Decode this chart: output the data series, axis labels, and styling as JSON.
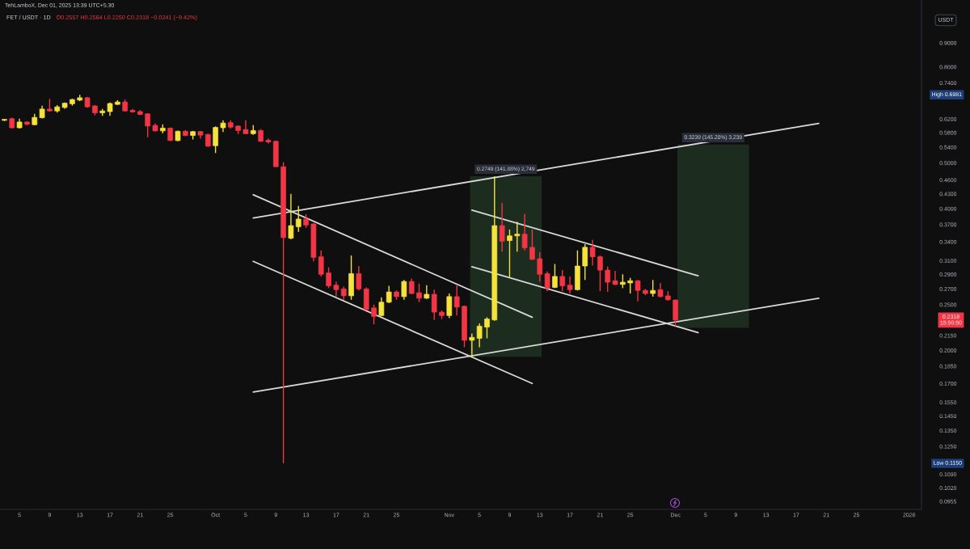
{
  "chart_data": {
    "type": "candlestick",
    "title": "FET / USDT · 1D",
    "subtitle": "O0.2557 H0.2564 L0.2250 C0.2318 −0.0241 (−9.42%)",
    "ylabel": "USDT",
    "log": true,
    "grid": false,
    "xlim": [
      "2025-09-02T10:00",
      "2026-01-02T15:00"
    ],
    "ylim": [
      0.0918,
      1.11
    ],
    "xticks": [
      {
        "value": "2025-09-05",
        "label": "5"
      },
      {
        "value": "2025-09-09",
        "label": "9"
      },
      {
        "value": "2025-09-13",
        "label": "13"
      },
      {
        "value": "2025-09-17",
        "label": "17"
      },
      {
        "value": "2025-09-21",
        "label": "21"
      },
      {
        "value": "2025-09-25",
        "label": "25"
      },
      {
        "value": "2025-10-01",
        "label": "Oct"
      },
      {
        "value": "2025-10-05",
        "label": "5"
      },
      {
        "value": "2025-10-09",
        "label": "9"
      },
      {
        "value": "2025-10-13",
        "label": "13"
      },
      {
        "value": "2025-10-17",
        "label": "17"
      },
      {
        "value": "2025-10-21",
        "label": "21"
      },
      {
        "value": "2025-10-25",
        "label": "25"
      },
      {
        "value": "2025-11-01",
        "label": "Nov"
      },
      {
        "value": "2025-11-05",
        "label": "5"
      },
      {
        "value": "2025-11-09",
        "label": "9"
      },
      {
        "value": "2025-11-13",
        "label": "13"
      },
      {
        "value": "2025-11-17",
        "label": "17"
      },
      {
        "value": "2025-11-21",
        "label": "21"
      },
      {
        "value": "2025-11-25",
        "label": "25"
      },
      {
        "value": "2025-12-01",
        "label": "Dec"
      },
      {
        "value": "2025-12-05",
        "label": "5"
      },
      {
        "value": "2025-12-09",
        "label": "9"
      },
      {
        "value": "2025-12-13",
        "label": "13"
      },
      {
        "value": "2025-12-17",
        "label": "17"
      },
      {
        "value": "2025-12-21",
        "label": "21"
      },
      {
        "value": "2025-12-25",
        "label": "25"
      },
      {
        "value": "2026-01-01",
        "label": "2026"
      }
    ],
    "yticks": [
      {
        "value": 0.9,
        "label": "0.9000"
      },
      {
        "value": 0.8,
        "label": "0.8000"
      },
      {
        "value": 0.74,
        "label": "0.7400"
      },
      {
        "value": 0.62,
        "label": "0.6200"
      },
      {
        "value": 0.58,
        "label": "0.5800"
      },
      {
        "value": 0.54,
        "label": "0.5400"
      },
      {
        "value": 0.5,
        "label": "0.5000"
      },
      {
        "value": 0.46,
        "label": "0.4600"
      },
      {
        "value": 0.43,
        "label": "0.4300"
      },
      {
        "value": 0.4,
        "label": "0.4000"
      },
      {
        "value": 0.37,
        "label": "0.3700"
      },
      {
        "value": 0.34,
        "label": "0.3400"
      },
      {
        "value": 0.31,
        "label": "0.3100"
      },
      {
        "value": 0.29,
        "label": "0.2900"
      },
      {
        "value": 0.27,
        "label": "0.2700"
      },
      {
        "value": 0.25,
        "label": "0.2500"
      },
      {
        "value": 0.215,
        "label": "0.2150"
      },
      {
        "value": 0.2,
        "label": "0.2000"
      },
      {
        "value": 0.185,
        "label": "0.1850"
      },
      {
        "value": 0.17,
        "label": "0.1700"
      },
      {
        "value": 0.155,
        "label": "0.1550"
      },
      {
        "value": 0.145,
        "label": "0.1450"
      },
      {
        "value": 0.135,
        "label": "0.1350"
      },
      {
        "value": 0.125,
        "label": "0.1250"
      },
      {
        "value": 0.109,
        "label": "0.1090"
      },
      {
        "value": 0.102,
        "label": "0.1020"
      },
      {
        "value": 0.0955,
        "label": "0.0955"
      }
    ],
    "annotations": [
      "TehLamboX, Dec 01, 2025 13:39 UTC+5:30",
      "High 0.6981",
      "Low 0.1150",
      "0.2318\n15:50:50"
    ],
    "series": [
      {
        "type": "bar",
        "x": [
          "2025-11-08T12:00"
        ],
        "values": [
          0.2749
        ],
        "base": [
          0.1937
        ],
        "value_labels": [
          "0.2749 (141.88%) 2,749"
        ],
        "color": "#1c2d1f"
      },
      {
        "type": "bar",
        "x": [
          "2025-12-06"
        ],
        "values": [
          0.3239
        ],
        "base": [
          0.2231
        ],
        "value_labels": [
          "0.3239 (145.20%) 3,239"
        ],
        "color": "#1c2d1f"
      },
      {
        "type": "line",
        "x": [
          "2025-10-06",
          "2025-12-20"
        ],
        "values": [
          0.382,
          0.607
        ],
        "color": "#d9d9d9"
      },
      {
        "type": "line",
        "x": [
          "2025-10-06",
          "2025-12-20"
        ],
        "values": [
          0.163,
          0.258
        ],
        "color": "#d9d9d9"
      },
      {
        "type": "line",
        "x": [
          "2025-10-06",
          "2025-11-12"
        ],
        "values": [
          0.428,
          0.235
        ],
        "color": "#d9d9d9"
      },
      {
        "type": "line",
        "x": [
          "2025-10-06",
          "2025-11-12"
        ],
        "values": [
          0.309,
          0.17
        ],
        "color": "#d9d9d9"
      },
      {
        "type": "line",
        "x": [
          "2025-11-04",
          "2025-12-04"
        ],
        "values": [
          0.397,
          0.288
        ],
        "color": "#d9d9d9"
      },
      {
        "type": "line",
        "x": [
          "2025-11-04",
          "2025-12-04"
        ],
        "values": [
          0.301,
          0.218
        ],
        "color": "#d9d9d9"
      },
      {
        "x": [
          "2025-09-03",
          "2025-09-04",
          "2025-09-05",
          "2025-09-06",
          "2025-09-07",
          "2025-09-08",
          "2025-09-09",
          "2025-09-10",
          "2025-09-11",
          "2025-09-12",
          "2025-09-13",
          "2025-09-14",
          "2025-09-15",
          "2025-09-16",
          "2025-09-17",
          "2025-09-18",
          "2025-09-19",
          "2025-09-20",
          "2025-09-21",
          "2025-09-22",
          "2025-09-23",
          "2025-09-24",
          "2025-09-25",
          "2025-09-26",
          "2025-09-27",
          "2025-09-28",
          "2025-09-29",
          "2025-09-30",
          "2025-10-01",
          "2025-10-02",
          "2025-10-03",
          "2025-10-04",
          "2025-10-05",
          "2025-10-06",
          "2025-10-07",
          "2025-10-08",
          "2025-10-09",
          "2025-10-10",
          "2025-10-11",
          "2025-10-12",
          "2025-10-13",
          "2025-10-14",
          "2025-10-15",
          "2025-10-16",
          "2025-10-17",
          "2025-10-18",
          "2025-10-19",
          "2025-10-20",
          "2025-10-21",
          "2025-10-22",
          "2025-10-23",
          "2025-10-24",
          "2025-10-25",
          "2025-10-26",
          "2025-10-27",
          "2025-10-28",
          "2025-10-29",
          "2025-10-30",
          "2025-10-31",
          "2025-11-01",
          "2025-11-02",
          "2025-11-03",
          "2025-11-04",
          "2025-11-05",
          "2025-11-06",
          "2025-11-07",
          "2025-11-08",
          "2025-11-09",
          "2025-11-10",
          "2025-11-11",
          "2025-11-12",
          "2025-11-13",
          "2025-11-14",
          "2025-11-15",
          "2025-11-16",
          "2025-11-17",
          "2025-11-18",
          "2025-11-19",
          "2025-11-20",
          "2025-11-21",
          "2025-11-22",
          "2025-11-23",
          "2025-11-24",
          "2025-11-25",
          "2025-11-26",
          "2025-11-27",
          "2025-11-28",
          "2025-11-29",
          "2025-11-30",
          "2025-12-01"
        ],
        "ohlc": [
          [
            0.616,
            0.62,
            0.614,
            0.619
          ],
          [
            0.621,
            0.624,
            0.592,
            0.594
          ],
          [
            0.594,
            0.621,
            0.592,
            0.611
          ],
          [
            0.611,
            0.613,
            0.601,
            0.604
          ],
          [
            0.603,
            0.636,
            0.601,
            0.625
          ],
          [
            0.624,
            0.662,
            0.622,
            0.651
          ],
          [
            0.651,
            0.684,
            0.643,
            0.645
          ],
          [
            0.645,
            0.664,
            0.64,
            0.658
          ],
          [
            0.656,
            0.672,
            0.652,
            0.67
          ],
          [
            0.668,
            0.685,
            0.662,
            0.682
          ],
          [
            0.68,
            0.6981,
            0.677,
            0.688
          ],
          [
            0.688,
            0.691,
            0.655,
            0.658
          ],
          [
            0.661,
            0.664,
            0.631,
            0.639
          ],
          [
            0.639,
            0.651,
            0.63,
            0.645
          ],
          [
            0.643,
            0.672,
            0.63,
            0.669
          ],
          [
            0.666,
            0.68,
            0.664,
            0.674
          ],
          [
            0.674,
            0.682,
            0.643,
            0.645
          ],
          [
            0.647,
            0.651,
            0.64,
            0.642
          ],
          [
            0.643,
            0.648,
            0.632,
            0.634
          ],
          [
            0.636,
            0.638,
            0.567,
            0.599
          ],
          [
            0.601,
            0.607,
            0.583,
            0.585
          ],
          [
            0.585,
            0.604,
            0.578,
            0.593
          ],
          [
            0.593,
            0.595,
            0.557,
            0.558
          ],
          [
            0.558,
            0.586,
            0.556,
            0.584
          ],
          [
            0.584,
            0.587,
            0.57,
            0.572
          ],
          [
            0.572,
            0.585,
            0.561,
            0.583
          ],
          [
            0.583,
            0.585,
            0.563,
            0.573
          ],
          [
            0.575,
            0.577,
            0.541,
            0.543
          ],
          [
            0.544,
            0.598,
            0.525,
            0.595
          ],
          [
            0.594,
            0.616,
            0.582,
            0.608
          ],
          [
            0.609,
            0.616,
            0.591,
            0.596
          ],
          [
            0.599,
            0.601,
            0.576,
            0.586
          ],
          [
            0.589,
            0.616,
            0.576,
            0.577
          ],
          [
            0.577,
            0.602,
            0.574,
            0.586
          ],
          [
            0.586,
            0.59,
            0.554,
            0.556
          ],
          [
            0.559,
            0.564,
            0.55,
            0.554
          ],
          [
            0.556,
            0.558,
            0.49,
            0.491
          ],
          [
            0.491,
            0.502,
            0.115,
            0.347
          ],
          [
            0.346,
            0.43,
            0.344,
            0.368
          ],
          [
            0.366,
            0.405,
            0.357,
            0.38
          ],
          [
            0.38,
            0.389,
            0.364,
            0.369
          ],
          [
            0.371,
            0.373,
            0.309,
            0.315
          ],
          [
            0.316,
            0.326,
            0.287,
            0.29
          ],
          [
            0.292,
            0.3,
            0.271,
            0.274
          ],
          [
            0.275,
            0.28,
            0.26,
            0.269
          ],
          [
            0.27,
            0.273,
            0.256,
            0.261
          ],
          [
            0.261,
            0.318,
            0.256,
            0.291
          ],
          [
            0.291,
            0.302,
            0.268,
            0.27
          ],
          [
            0.27,
            0.272,
            0.243,
            0.244
          ],
          [
            0.246,
            0.25,
            0.227,
            0.236
          ],
          [
            0.237,
            0.259,
            0.236,
            0.253
          ],
          [
            0.253,
            0.274,
            0.252,
            0.266
          ],
          [
            0.266,
            0.268,
            0.256,
            0.26
          ],
          [
            0.26,
            0.282,
            0.256,
            0.28
          ],
          [
            0.28,
            0.284,
            0.263,
            0.264
          ],
          [
            0.265,
            0.277,
            0.253,
            0.258
          ],
          [
            0.258,
            0.275,
            0.257,
            0.263
          ],
          [
            0.263,
            0.269,
            0.232,
            0.241
          ],
          [
            0.241,
            0.243,
            0.233,
            0.237
          ],
          [
            0.237,
            0.264,
            0.234,
            0.26
          ],
          [
            0.26,
            0.275,
            0.237,
            0.247
          ],
          [
            0.248,
            0.249,
            0.203,
            0.21
          ],
          [
            0.21,
            0.217,
            0.1937,
            0.213
          ],
          [
            0.212,
            0.228,
            0.203,
            0.225
          ],
          [
            0.224,
            0.235,
            0.212,
            0.233
          ],
          [
            0.232,
            0.4686,
            0.231,
            0.368
          ],
          [
            0.368,
            0.411,
            0.324,
            0.341
          ],
          [
            0.342,
            0.361,
            0.286,
            0.35
          ],
          [
            0.35,
            0.375,
            0.324,
            0.353
          ],
          [
            0.353,
            0.39,
            0.326,
            0.33
          ],
          [
            0.331,
            0.361,
            0.311,
            0.312
          ],
          [
            0.313,
            0.323,
            0.28,
            0.29
          ],
          [
            0.291,
            0.294,
            0.267,
            0.271
          ],
          [
            0.272,
            0.305,
            0.271,
            0.287
          ],
          [
            0.287,
            0.296,
            0.267,
            0.274
          ],
          [
            0.275,
            0.287,
            0.264,
            0.269
          ],
          [
            0.269,
            0.326,
            0.268,
            0.302
          ],
          [
            0.302,
            0.336,
            0.282,
            0.331
          ],
          [
            0.331,
            0.343,
            0.303,
            0.316
          ],
          [
            0.316,
            0.318,
            0.267,
            0.296
          ],
          [
            0.296,
            0.301,
            0.266,
            0.279
          ],
          [
            0.281,
            0.295,
            0.275,
            0.276
          ],
          [
            0.276,
            0.29,
            0.271,
            0.279
          ],
          [
            0.278,
            0.285,
            0.264,
            0.281
          ],
          [
            0.281,
            0.282,
            0.254,
            0.268
          ],
          [
            0.268,
            0.27,
            0.262,
            0.264
          ],
          [
            0.264,
            0.282,
            0.26,
            0.268
          ],
          [
            0.269,
            0.278,
            0.259,
            0.26
          ],
          [
            0.261,
            0.267,
            0.255,
            0.256
          ],
          [
            0.2557,
            0.2564,
            0.225,
            0.2318
          ]
        ],
        "colors": [
          "#f5e23b",
          "#f23645",
          "#f5e23b",
          "#f23645",
          "#f5e23b",
          "#f5e23b",
          "#f23645",
          "#f5e23b",
          "#f5e23b",
          "#f5e23b",
          "#f5e23b",
          "#f23645",
          "#f23645",
          "#f5e23b",
          "#f5e23b",
          "#f5e23b",
          "#f23645",
          "#f23645",
          "#f23645",
          "#f23645",
          "#f23645",
          "#f5e23b",
          "#f23645",
          "#f5e23b",
          "#f23645",
          "#f5e23b",
          "#f23645",
          "#f23645",
          "#f5e23b",
          "#f5e23b",
          "#f23645",
          "#f23645",
          "#f23645",
          "#f5e23b",
          "#f23645",
          "#f23645",
          "#f23645",
          "#f23645",
          "#f5e23b",
          "#f5e23b",
          "#f23645",
          "#f23645",
          "#f23645",
          "#f23645",
          "#f23645",
          "#f23645",
          "#f5e23b",
          "#f23645",
          "#f23645",
          "#f23645",
          "#f5e23b",
          "#f5e23b",
          "#f23645",
          "#f5e23b",
          "#f23645",
          "#f23645",
          "#f5e23b",
          "#f23645",
          "#f23645",
          "#f5e23b",
          "#f23645",
          "#f23645",
          "#f5e23b",
          "#f5e23b",
          "#f5e23b",
          "#f5e23b",
          "#f23645",
          "#f5e23b",
          "#f5e23b",
          "#f23645",
          "#f23645",
          "#f23645",
          "#f23645",
          "#f5e23b",
          "#f23645",
          "#f23645",
          "#f5e23b",
          "#f5e23b",
          "#f23645",
          "#f23645",
          "#f23645",
          "#f23645",
          "#f5e23b",
          "#f5e23b",
          "#f23645",
          "#f23645",
          "#f5e23b",
          "#f23645",
          "#f23645",
          "#f23645"
        ]
      }
    ]
  }
}
